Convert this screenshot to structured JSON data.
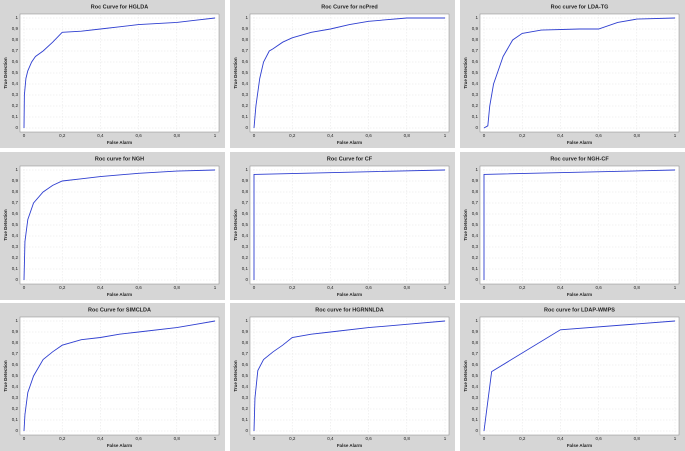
{
  "chart_data": [
    {
      "type": "line",
      "title": "Roc Curve for HGLDA",
      "xlabel": "False Alarm",
      "ylabel": "True Detection",
      "color": "#2f3fd0",
      "grid": true,
      "series": [
        {
          "x": [
            0,
            0.002,
            0.01,
            0.02,
            0.04,
            0.06,
            0.1,
            0.15,
            0.2,
            0.3,
            0.4,
            0.5,
            0.6,
            0.8,
            0.9,
            1
          ],
          "values": [
            0,
            0.3,
            0.45,
            0.52,
            0.6,
            0.65,
            0.7,
            0.78,
            0.87,
            0.88,
            0.9,
            0.92,
            0.94,
            0.96,
            0.98,
            1
          ]
        }
      ],
      "xlim": [
        0,
        1
      ],
      "ylim": [
        0,
        1
      ],
      "xticks": [
        0,
        {
          "value": 0.2,
          "label": "0,2"
        },
        {
          "value": 0.4,
          "label": "0,4"
        },
        {
          "value": 0.6,
          "label": "0,6"
        },
        {
          "value": 0.8,
          "label": "0,8"
        },
        1
      ],
      "yticks": [
        0,
        {
          "value": 0.1,
          "label": "0,1"
        },
        {
          "value": 0.2,
          "label": "0,2"
        },
        {
          "value": 0.3,
          "label": "0,3"
        },
        {
          "value": 0.4,
          "label": "0,4"
        },
        {
          "value": 0.5,
          "label": "0,5"
        },
        {
          "value": 0.6,
          "label": "0,6"
        },
        {
          "value": 0.7,
          "label": "0,7"
        },
        {
          "value": 0.8,
          "label": "0,8"
        },
        {
          "value": 0.9,
          "label": "0,9"
        },
        1
      ]
    },
    {
      "type": "line",
      "title": "Roc Curve for ncPred",
      "xlabel": "False Alarm",
      "ylabel": "True Detection",
      "color": "#2f3fd0",
      "grid": true,
      "series": [
        {
          "x": [
            0,
            0.01,
            0.03,
            0.05,
            0.08,
            0.1,
            0.15,
            0.2,
            0.3,
            0.4,
            0.5,
            0.6,
            0.8,
            1
          ],
          "values": [
            0,
            0.2,
            0.45,
            0.6,
            0.7,
            0.72,
            0.78,
            0.82,
            0.87,
            0.9,
            0.94,
            0.97,
            1,
            1
          ]
        }
      ],
      "xlim": [
        0,
        1
      ],
      "ylim": [
        0,
        1
      ],
      "xticks": [
        0,
        {
          "value": 0.2,
          "label": "0,2"
        },
        {
          "value": 0.4,
          "label": "0,4"
        },
        {
          "value": 0.6,
          "label": "0,6"
        },
        {
          "value": 0.8,
          "label": "0,8"
        },
        1
      ],
      "yticks": [
        0,
        {
          "value": 0.1,
          "label": "0,1"
        },
        {
          "value": 0.2,
          "label": "0,2"
        },
        {
          "value": 0.3,
          "label": "0,3"
        },
        {
          "value": 0.4,
          "label": "0,4"
        },
        {
          "value": 0.5,
          "label": "0,5"
        },
        {
          "value": 0.6,
          "label": "0,6"
        },
        {
          "value": 0.7,
          "label": "0,7"
        },
        {
          "value": 0.8,
          "label": "0,8"
        },
        {
          "value": 0.9,
          "label": "0,9"
        },
        1
      ]
    },
    {
      "type": "line",
      "title": "Roc curve for LDA-TG",
      "xlabel": "False Alarm",
      "ylabel": "True Detection",
      "color": "#2f3fd0",
      "grid": true,
      "series": [
        {
          "x": [
            0,
            0.02,
            0.03,
            0.05,
            0.08,
            0.1,
            0.15,
            0.2,
            0.3,
            0.5,
            0.6,
            0.7,
            0.8,
            1
          ],
          "values": [
            0,
            0.02,
            0.2,
            0.4,
            0.55,
            0.65,
            0.8,
            0.86,
            0.89,
            0.9,
            0.9,
            0.96,
            0.99,
            1
          ]
        }
      ],
      "xlim": [
        0,
        1
      ],
      "ylim": [
        0,
        1
      ],
      "xticks": [
        0,
        {
          "value": 0.2,
          "label": "0,2"
        },
        {
          "value": 0.4,
          "label": "0,4"
        },
        {
          "value": 0.6,
          "label": "0,6"
        },
        {
          "value": 0.8,
          "label": "0,8"
        },
        1
      ],
      "yticks": [
        0,
        {
          "value": 0.1,
          "label": "0,1"
        },
        {
          "value": 0.2,
          "label": "0,2"
        },
        {
          "value": 0.3,
          "label": "0,3"
        },
        {
          "value": 0.4,
          "label": "0,4"
        },
        {
          "value": 0.5,
          "label": "0,5"
        },
        {
          "value": 0.6,
          "label": "0,6"
        },
        {
          "value": 0.7,
          "label": "0,7"
        },
        {
          "value": 0.8,
          "label": "0,8"
        },
        {
          "value": 0.9,
          "label": "0,9"
        },
        1
      ]
    },
    {
      "type": "line",
      "title": "Roc curve for NGH",
      "xlabel": "False Alarm",
      "ylabel": "True Detection",
      "color": "#2f3fd0",
      "grid": true,
      "series": [
        {
          "x": [
            0,
            0.005,
            0.02,
            0.05,
            0.1,
            0.15,
            0.2,
            0.3,
            0.4,
            0.6,
            0.8,
            1
          ],
          "values": [
            0,
            0.35,
            0.55,
            0.7,
            0.8,
            0.86,
            0.9,
            0.92,
            0.94,
            0.97,
            0.99,
            1
          ]
        }
      ],
      "xlim": [
        0,
        1
      ],
      "ylim": [
        0,
        1
      ],
      "xticks": [
        0,
        {
          "value": 0.2,
          "label": "0,2"
        },
        {
          "value": 0.4,
          "label": "0,4"
        },
        {
          "value": 0.6,
          "label": "0,6"
        },
        {
          "value": 0.8,
          "label": "0,8"
        },
        1
      ],
      "yticks": [
        0,
        {
          "value": 0.1,
          "label": "0,1"
        },
        {
          "value": 0.2,
          "label": "0,2"
        },
        {
          "value": 0.3,
          "label": "0,3"
        },
        {
          "value": 0.4,
          "label": "0,4"
        },
        {
          "value": 0.5,
          "label": "0,5"
        },
        {
          "value": 0.6,
          "label": "0,6"
        },
        {
          "value": 0.7,
          "label": "0,7"
        },
        {
          "value": 0.8,
          "label": "0,8"
        },
        {
          "value": 0.9,
          "label": "0,9"
        },
        1
      ]
    },
    {
      "type": "line",
      "title": "Roc Curve for CF",
      "xlabel": "False Alarm",
      "ylabel": "True Detection",
      "color": "#2f3fd0",
      "grid": true,
      "series": [
        {
          "x": [
            0,
            0,
            1
          ],
          "values": [
            0,
            0.96,
            1
          ]
        }
      ],
      "xlim": [
        0,
        1
      ],
      "ylim": [
        0,
        1
      ],
      "xticks": [
        0,
        {
          "value": 0.2,
          "label": "0,2"
        },
        {
          "value": 0.4,
          "label": "0,4"
        },
        {
          "value": 0.6,
          "label": "0,6"
        },
        {
          "value": 0.8,
          "label": "0,8"
        },
        1
      ],
      "yticks": [
        0,
        {
          "value": 0.1,
          "label": "0,1"
        },
        {
          "value": 0.2,
          "label": "0,2"
        },
        {
          "value": 0.3,
          "label": "0,3"
        },
        {
          "value": 0.4,
          "label": "0,4"
        },
        {
          "value": 0.5,
          "label": "0,5"
        },
        {
          "value": 0.6,
          "label": "0,6"
        },
        {
          "value": 0.7,
          "label": "0,7"
        },
        {
          "value": 0.8,
          "label": "0,8"
        },
        {
          "value": 0.9,
          "label": "0,9"
        },
        1
      ]
    },
    {
      "type": "line",
      "title": "Roc curve for NGH-CF",
      "xlabel": "False Alarm",
      "ylabel": "True Detection",
      "color": "#2f3fd0",
      "grid": true,
      "series": [
        {
          "x": [
            0,
            0,
            1
          ],
          "values": [
            0,
            0.96,
            1
          ]
        }
      ],
      "xlim": [
        0,
        1
      ],
      "ylim": [
        0,
        1
      ],
      "xticks": [
        0,
        {
          "value": 0.2,
          "label": "0,2"
        },
        {
          "value": 0.4,
          "label": "0,4"
        },
        {
          "value": 0.6,
          "label": "0,6"
        },
        {
          "value": 0.8,
          "label": "0,8"
        },
        1
      ],
      "yticks": [
        0,
        {
          "value": 0.1,
          "label": "0,1"
        },
        {
          "value": 0.2,
          "label": "0,2"
        },
        {
          "value": 0.3,
          "label": "0,3"
        },
        {
          "value": 0.4,
          "label": "0,4"
        },
        {
          "value": 0.5,
          "label": "0,5"
        },
        {
          "value": 0.6,
          "label": "0,6"
        },
        {
          "value": 0.7,
          "label": "0,7"
        },
        {
          "value": 0.8,
          "label": "0,8"
        },
        {
          "value": 0.9,
          "label": "0,9"
        },
        1
      ]
    },
    {
      "type": "line",
      "title": "Roc Curve for SIMCLDA",
      "xlabel": "False Alarm",
      "ylabel": "True Detection",
      "color": "#2f3fd0",
      "grid": true,
      "series": [
        {
          "x": [
            0,
            0.005,
            0.02,
            0.05,
            0.1,
            0.15,
            0.2,
            0.3,
            0.4,
            0.5,
            0.6,
            0.8,
            0.9,
            1
          ],
          "values": [
            0,
            0.15,
            0.35,
            0.5,
            0.65,
            0.72,
            0.78,
            0.83,
            0.85,
            0.88,
            0.9,
            0.94,
            0.97,
            1
          ]
        }
      ],
      "xlim": [
        0,
        1
      ],
      "ylim": [
        0,
        1
      ],
      "xticks": [
        0,
        {
          "value": 0.2,
          "label": "0,2"
        },
        {
          "value": 0.4,
          "label": "0,4"
        },
        {
          "value": 0.6,
          "label": "0,6"
        },
        {
          "value": 0.8,
          "label": "0,8"
        },
        1
      ],
      "yticks": [
        0,
        {
          "value": 0.1,
          "label": "0,1"
        },
        {
          "value": 0.2,
          "label": "0,2"
        },
        {
          "value": 0.3,
          "label": "0,3"
        },
        {
          "value": 0.4,
          "label": "0,4"
        },
        {
          "value": 0.5,
          "label": "0,5"
        },
        {
          "value": 0.6,
          "label": "0,6"
        },
        {
          "value": 0.7,
          "label": "0,7"
        },
        {
          "value": 0.8,
          "label": "0,8"
        },
        {
          "value": 0.9,
          "label": "0,9"
        },
        1
      ]
    },
    {
      "type": "line",
      "title": "Roc curve for HGRNNLDA",
      "xlabel": "False Alarm",
      "ylabel": "True Detection",
      "color": "#2f3fd0",
      "grid": true,
      "series": [
        {
          "x": [
            0,
            0.005,
            0.02,
            0.05,
            0.1,
            0.15,
            0.2,
            0.3,
            0.4,
            0.6,
            0.8,
            1
          ],
          "values": [
            0,
            0.3,
            0.55,
            0.65,
            0.72,
            0.78,
            0.85,
            0.88,
            0.9,
            0.94,
            0.97,
            1
          ]
        }
      ],
      "xlim": [
        0,
        1
      ],
      "ylim": [
        0,
        1
      ],
      "xticks": [
        0,
        {
          "value": 0.2,
          "label": "0,2"
        },
        {
          "value": 0.4,
          "label": "0,4"
        },
        {
          "value": 0.6,
          "label": "0,6"
        },
        {
          "value": 0.8,
          "label": "0,8"
        },
        1
      ],
      "yticks": [
        0,
        {
          "value": 0.1,
          "label": "0,1"
        },
        {
          "value": 0.2,
          "label": "0,2"
        },
        {
          "value": 0.3,
          "label": "0,3"
        },
        {
          "value": 0.4,
          "label": "0,4"
        },
        {
          "value": 0.5,
          "label": "0,5"
        },
        {
          "value": 0.6,
          "label": "0,6"
        },
        {
          "value": 0.7,
          "label": "0,7"
        },
        {
          "value": 0.8,
          "label": "0,8"
        },
        {
          "value": 0.9,
          "label": "0,9"
        },
        1
      ]
    },
    {
      "type": "line",
      "title": "Roc curve for LDAP-WMPS",
      "xlabel": "False Alarm",
      "ylabel": "True Detection",
      "color": "#2f3fd0",
      "grid": true,
      "series": [
        {
          "x": [
            0,
            0.04,
            0.4,
            1
          ],
          "values": [
            0,
            0.54,
            0.92,
            1
          ]
        }
      ],
      "xlim": [
        0,
        1
      ],
      "ylim": [
        0,
        1
      ],
      "xticks": [
        0,
        {
          "value": 0.2,
          "label": "0,2"
        },
        {
          "value": 0.4,
          "label": "0,4"
        },
        {
          "value": 0.6,
          "label": "0,6"
        },
        {
          "value": 0.8,
          "label": "0,8"
        },
        1
      ],
      "yticks": [
        0,
        {
          "value": 0.1,
          "label": "0,1"
        },
        {
          "value": 0.2,
          "label": "0,2"
        },
        {
          "value": 0.3,
          "label": "0,3"
        },
        {
          "value": 0.4,
          "label": "0,4"
        },
        {
          "value": 0.5,
          "label": "0,5"
        },
        {
          "value": 0.6,
          "label": "0,6"
        },
        {
          "value": 0.7,
          "label": "0,7"
        },
        {
          "value": 0.8,
          "label": "0,8"
        },
        {
          "value": 0.9,
          "label": "0,9"
        },
        1
      ]
    }
  ]
}
